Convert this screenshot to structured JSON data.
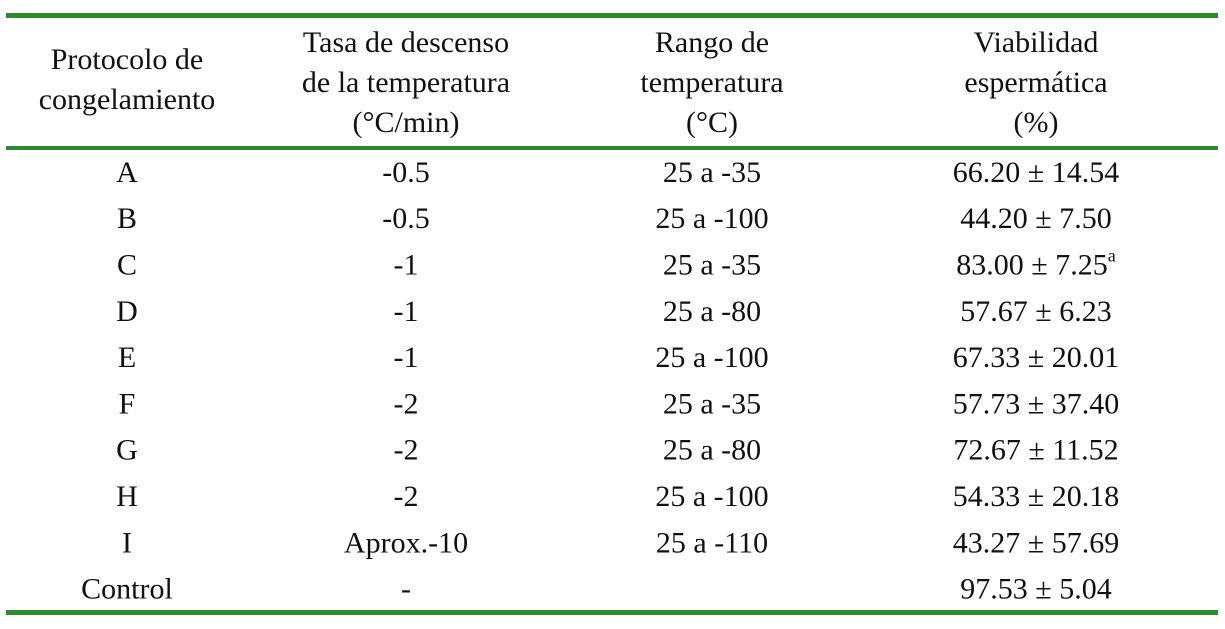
{
  "table": {
    "header": [
      [
        "Protocolo de",
        "congelamiento"
      ],
      [
        "Tasa de descenso",
        "de la temperatura",
        "(°C/min)"
      ],
      [
        "Rango de",
        "temperatura",
        "(°C)"
      ],
      [
        "Viabilidad",
        "espermática",
        "(%)"
      ]
    ],
    "rows": [
      [
        "A",
        "-0.5",
        "25 a -35",
        "66.20 ± 14.54"
      ],
      [
        "B",
        "-0.5",
        "25 a -100",
        "44.20 ± 7.50"
      ],
      [
        "C",
        "-1",
        "25 a -35",
        {
          "text": "83.00 ± 7.25",
          "sup": "a"
        }
      ],
      [
        "D",
        "-1",
        "25 a -80",
        "57.67 ± 6.23"
      ],
      [
        "E",
        "-1",
        "25 a -100",
        "67.33 ± 20.01"
      ],
      [
        "F",
        "-2",
        "25 a -35",
        "57.73 ± 37.40"
      ],
      [
        "G",
        "-2",
        "25 a -80",
        "72.67 ± 11.52"
      ],
      [
        "H",
        "-2",
        "25 a -100",
        "54.33 ± 20.18"
      ],
      [
        "I",
        "Aprox.-10",
        "25 a -110",
        "43.27 ± 57.69"
      ],
      [
        "Control",
        "-",
        null,
        "97.53 ± 5.04"
      ]
    ]
  }
}
